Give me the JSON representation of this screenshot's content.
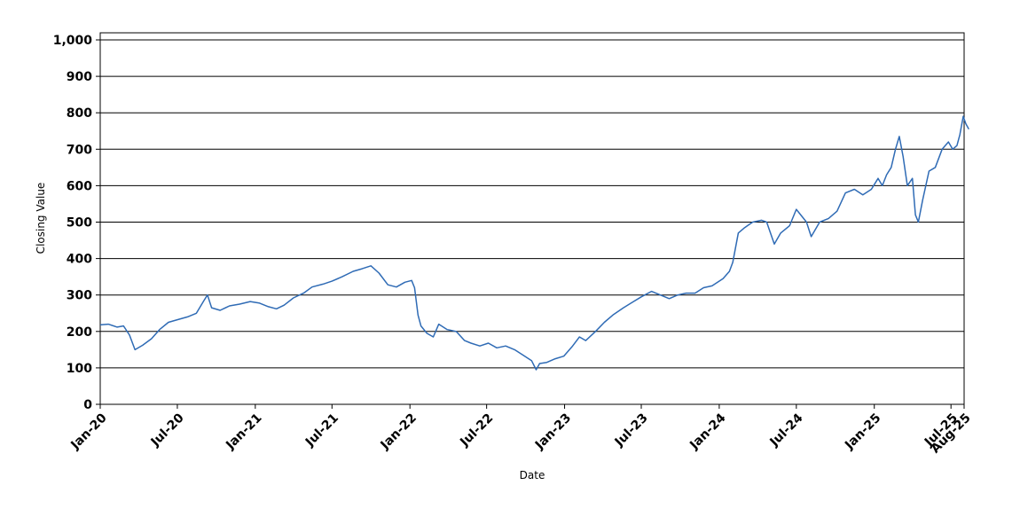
{
  "chart_data": {
    "type": "line",
    "title": "",
    "xlabel": "Date",
    "ylabel": "Closing Value",
    "ylim": [
      0,
      1020
    ],
    "xlim": [
      "2020-01-01",
      "2025-08-01"
    ],
    "grid": "horizontal",
    "legend": "none",
    "line_color": "#2f6bb5",
    "y_ticks": [
      0,
      100,
      200,
      300,
      400,
      500,
      600,
      700,
      800,
      900,
      1000
    ],
    "y_tick_labels": [
      "0",
      "100",
      "200",
      "300",
      "400",
      "500",
      "600",
      "700",
      "800",
      "900",
      "1,000"
    ],
    "x_ticks": [
      {
        "label": "Jan-20",
        "date": "2020-01-01"
      },
      {
        "label": "Jul-20",
        "date": "2020-07-01"
      },
      {
        "label": "Jan-21",
        "date": "2021-01-01"
      },
      {
        "label": "Jul-21",
        "date": "2021-07-01"
      },
      {
        "label": "Jan-22",
        "date": "2022-01-01"
      },
      {
        "label": "Jul-22",
        "date": "2022-07-01"
      },
      {
        "label": "Jan-23",
        "date": "2023-01-01"
      },
      {
        "label": "Jul-23",
        "date": "2023-07-01"
      },
      {
        "label": "Jan-24",
        "date": "2024-01-01"
      },
      {
        "label": "Jul-24",
        "date": "2024-07-01"
      },
      {
        "label": "Jan-25",
        "date": "2025-01-01"
      },
      {
        "label": "Jul-25",
        "date": "2025-07-01"
      },
      {
        "label": "Aug-25",
        "date": "2025-08-01"
      }
    ],
    "series": [
      {
        "x": [
          "2020-01-01",
          "2020-01-20",
          "2020-02-10",
          "2020-02-25",
          "2020-03-10",
          "2020-03-23",
          "2020-04-10",
          "2020-05-01",
          "2020-05-20",
          "2020-06-10",
          "2020-07-01",
          "2020-07-25",
          "2020-08-15",
          "2020-09-02",
          "2020-09-10",
          "2020-09-20",
          "2020-10-10",
          "2020-11-01",
          "2020-11-25",
          "2020-12-20",
          "2021-01-10",
          "2021-02-01",
          "2021-02-20",
          "2021-03-10",
          "2021-04-01",
          "2021-04-25",
          "2021-05-15",
          "2021-06-10",
          "2021-07-01",
          "2021-07-25",
          "2021-08-20",
          "2021-09-10",
          "2021-10-01",
          "2021-10-20",
          "2021-11-10",
          "2021-11-30",
          "2021-12-20",
          "2022-01-05",
          "2022-01-12",
          "2022-01-20",
          "2022-01-27",
          "2022-02-10",
          "2022-02-25",
          "2022-03-10",
          "2022-03-30",
          "2022-04-20",
          "2022-05-10",
          "2022-05-25",
          "2022-06-15",
          "2022-07-05",
          "2022-07-25",
          "2022-08-15",
          "2022-09-05",
          "2022-09-25",
          "2022-10-15",
          "2022-10-26",
          "2022-11-03",
          "2022-11-20",
          "2022-12-10",
          "2022-12-30",
          "2023-01-20",
          "2023-02-05",
          "2023-02-20",
          "2023-03-15",
          "2023-04-05",
          "2023-04-25",
          "2023-05-20",
          "2023-06-10",
          "2023-07-01",
          "2023-07-25",
          "2023-08-15",
          "2023-09-05",
          "2023-09-25",
          "2023-10-15",
          "2023-11-05",
          "2023-11-25",
          "2023-12-15",
          "2024-01-10",
          "2024-01-25",
          "2024-02-02",
          "2024-02-15",
          "2024-03-01",
          "2024-03-20",
          "2024-04-10",
          "2024-04-22",
          "2024-05-10",
          "2024-05-25",
          "2024-06-15",
          "2024-07-01",
          "2024-07-25",
          "2024-08-05",
          "2024-08-25",
          "2024-09-15",
          "2024-10-05",
          "2024-10-25",
          "2024-11-15",
          "2024-12-05",
          "2024-12-25",
          "2025-01-10",
          "2025-01-20",
          "2025-01-30",
          "2025-02-10",
          "2025-02-20",
          "2025-03-01",
          "2025-03-10",
          "2025-03-20",
          "2025-04-01",
          "2025-04-08",
          "2025-04-15",
          "2025-04-25",
          "2025-05-10",
          "2025-05-25",
          "2025-06-10",
          "2025-06-25",
          "2025-07-05",
          "2025-07-15",
          "2025-07-22",
          "2025-07-30",
          "2025-08-05",
          "2025-08-12"
        ],
        "y": [
          218,
          220,
          212,
          215,
          190,
          150,
          162,
          180,
          205,
          225,
          232,
          240,
          250,
          285,
          300,
          265,
          258,
          270,
          275,
          282,
          278,
          268,
          262,
          272,
          292,
          305,
          322,
          330,
          338,
          350,
          365,
          372,
          380,
          360,
          328,
          322,
          335,
          340,
          320,
          245,
          215,
          195,
          185,
          220,
          205,
          200,
          175,
          168,
          160,
          168,
          155,
          160,
          150,
          135,
          120,
          95,
          112,
          115,
          125,
          132,
          160,
          185,
          175,
          200,
          225,
          245,
          265,
          280,
          295,
          310,
          300,
          290,
          300,
          305,
          305,
          320,
          325,
          345,
          365,
          390,
          470,
          485,
          500,
          505,
          500,
          440,
          470,
          490,
          535,
          500,
          460,
          500,
          510,
          530,
          580,
          590,
          575,
          590,
          620,
          600,
          630,
          650,
          700,
          735,
          680,
          600,
          620,
          520,
          500,
          560,
          640,
          650,
          700,
          720,
          700,
          710,
          740,
          790,
          770,
          755
        ]
      }
    ]
  }
}
